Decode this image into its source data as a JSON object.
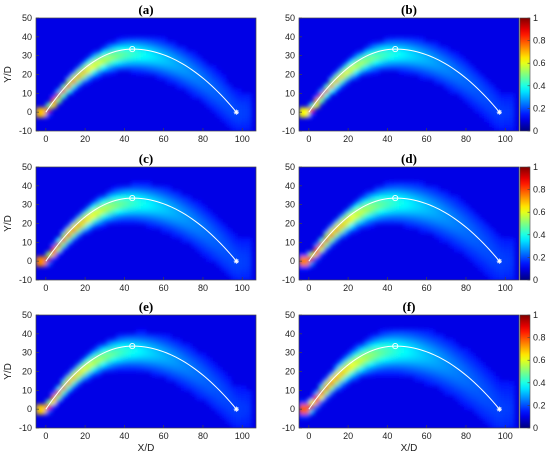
{
  "chart_data": {
    "type": "heatmap",
    "x_range": [
      -5,
      107
    ],
    "y_range": [
      -10,
      50
    ],
    "x_ticks": [
      0,
      20,
      40,
      60,
      80,
      100
    ],
    "y_ticks": [
      -10,
      0,
      10,
      20,
      30,
      40,
      50
    ],
    "xlabel": "X/D",
    "ylabel": "Y/D",
    "colorbar": {
      "range": [
        0,
        1
      ],
      "ticks": [
        "0",
        "0.2",
        "0.4",
        "0.6",
        "0.8",
        "1"
      ],
      "colormap": "jet"
    },
    "trajectory": {
      "shape": "parabola",
      "start": [
        0,
        0
      ],
      "apex": [
        44,
        33.5
      ],
      "end": [
        97,
        0
      ],
      "apex_marker": "circle",
      "end_marker": "asterisk",
      "color": "#ffffff"
    },
    "panels": [
      {
        "label": "(a)",
        "peak": 0.95,
        "spread": 0.9
      },
      {
        "label": "(b)",
        "peak": 0.85,
        "spread": 0.9
      },
      {
        "label": "(c)",
        "peak": 0.95,
        "spread": 1.0
      },
      {
        "label": "(d)",
        "peak": 0.9,
        "spread": 1.1
      },
      {
        "label": "(e)",
        "peak": 0.85,
        "spread": 1.0
      },
      {
        "label": "(f)",
        "peak": 0.9,
        "spread": 1.2
      }
    ]
  }
}
